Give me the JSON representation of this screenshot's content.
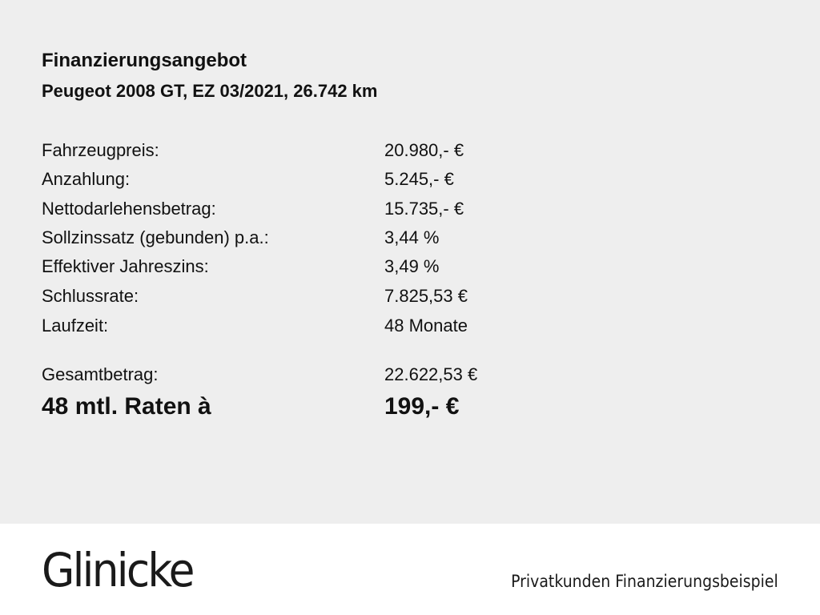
{
  "header": {
    "title": "Finanzierungsangebot",
    "subtitle": "Peugeot 2008 GT, EZ 03/2021, 26.742 km"
  },
  "rows": [
    {
      "label": "Fahrzeugpreis:",
      "value": "20.980,- €"
    },
    {
      "label": "Anzahlung:",
      "value": "5.245,- €"
    },
    {
      "label": "Nettodarlehensbetrag:",
      "value": "15.735,- €"
    },
    {
      "label": "Sollzinssatz (gebunden) p.a.:",
      "value": "3,44 %"
    },
    {
      "label": "Effektiver Jahreszins:",
      "value": "3,49 %"
    },
    {
      "label": "Schlussrate:",
      "value": "7.825,53 €"
    },
    {
      "label": "Laufzeit:",
      "value": "48 Monate"
    }
  ],
  "total": {
    "label": "Gesamtbetrag:",
    "value": "22.622,53 €"
  },
  "rate": {
    "label": "48 mtl. Raten à",
    "value": "199,- €"
  },
  "footer": {
    "logo": "Glinicke",
    "tagline": "Privatkunden Finanzierungsbeispiel"
  },
  "colors": {
    "panel_background": "#eeeeee",
    "footer_background": "#ffffff",
    "text": "#111111"
  }
}
